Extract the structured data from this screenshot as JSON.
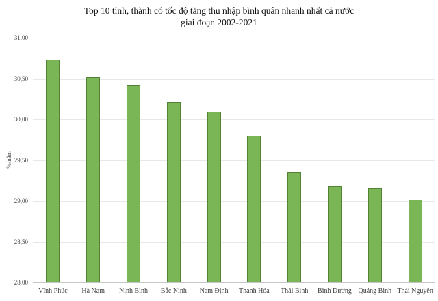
{
  "chart_data": {
    "type": "bar",
    "title": "Top 10 tỉnh, thành có tốc độ tăng thu nhập bình quân nhanh nhất cả nước",
    "subtitle": "giai đoạn 2002-2021",
    "xlabel": "",
    "ylabel": "%/năm",
    "ylim": [
      28.0,
      31.0
    ],
    "ytick_step": 0.5,
    "grid": true,
    "legend": false,
    "bar_fill": "#7ab656",
    "bar_border": "#538135",
    "yticks": [
      {
        "label": "31,00",
        "value": 31.0
      },
      {
        "label": "30,50",
        "value": 30.5
      },
      {
        "label": "30,00",
        "value": 30.0
      },
      {
        "label": "29,50",
        "value": 29.5
      },
      {
        "label": "29,00",
        "value": 29.0
      },
      {
        "label": "28,50",
        "value": 28.5
      },
      {
        "label": "28,00",
        "value": 28.0
      }
    ],
    "categories": [
      "Vĩnh Phúc",
      "Hà Nam",
      "Ninh Bình",
      "Bắc Ninh",
      "Nam Định",
      "Thanh Hóa",
      "Thái Bình",
      "Bình Dương",
      "Quảng Bình",
      "Thái Nguyên"
    ],
    "values": [
      30.73,
      30.51,
      30.42,
      30.21,
      30.09,
      29.8,
      29.35,
      29.18,
      29.16,
      29.02
    ]
  }
}
